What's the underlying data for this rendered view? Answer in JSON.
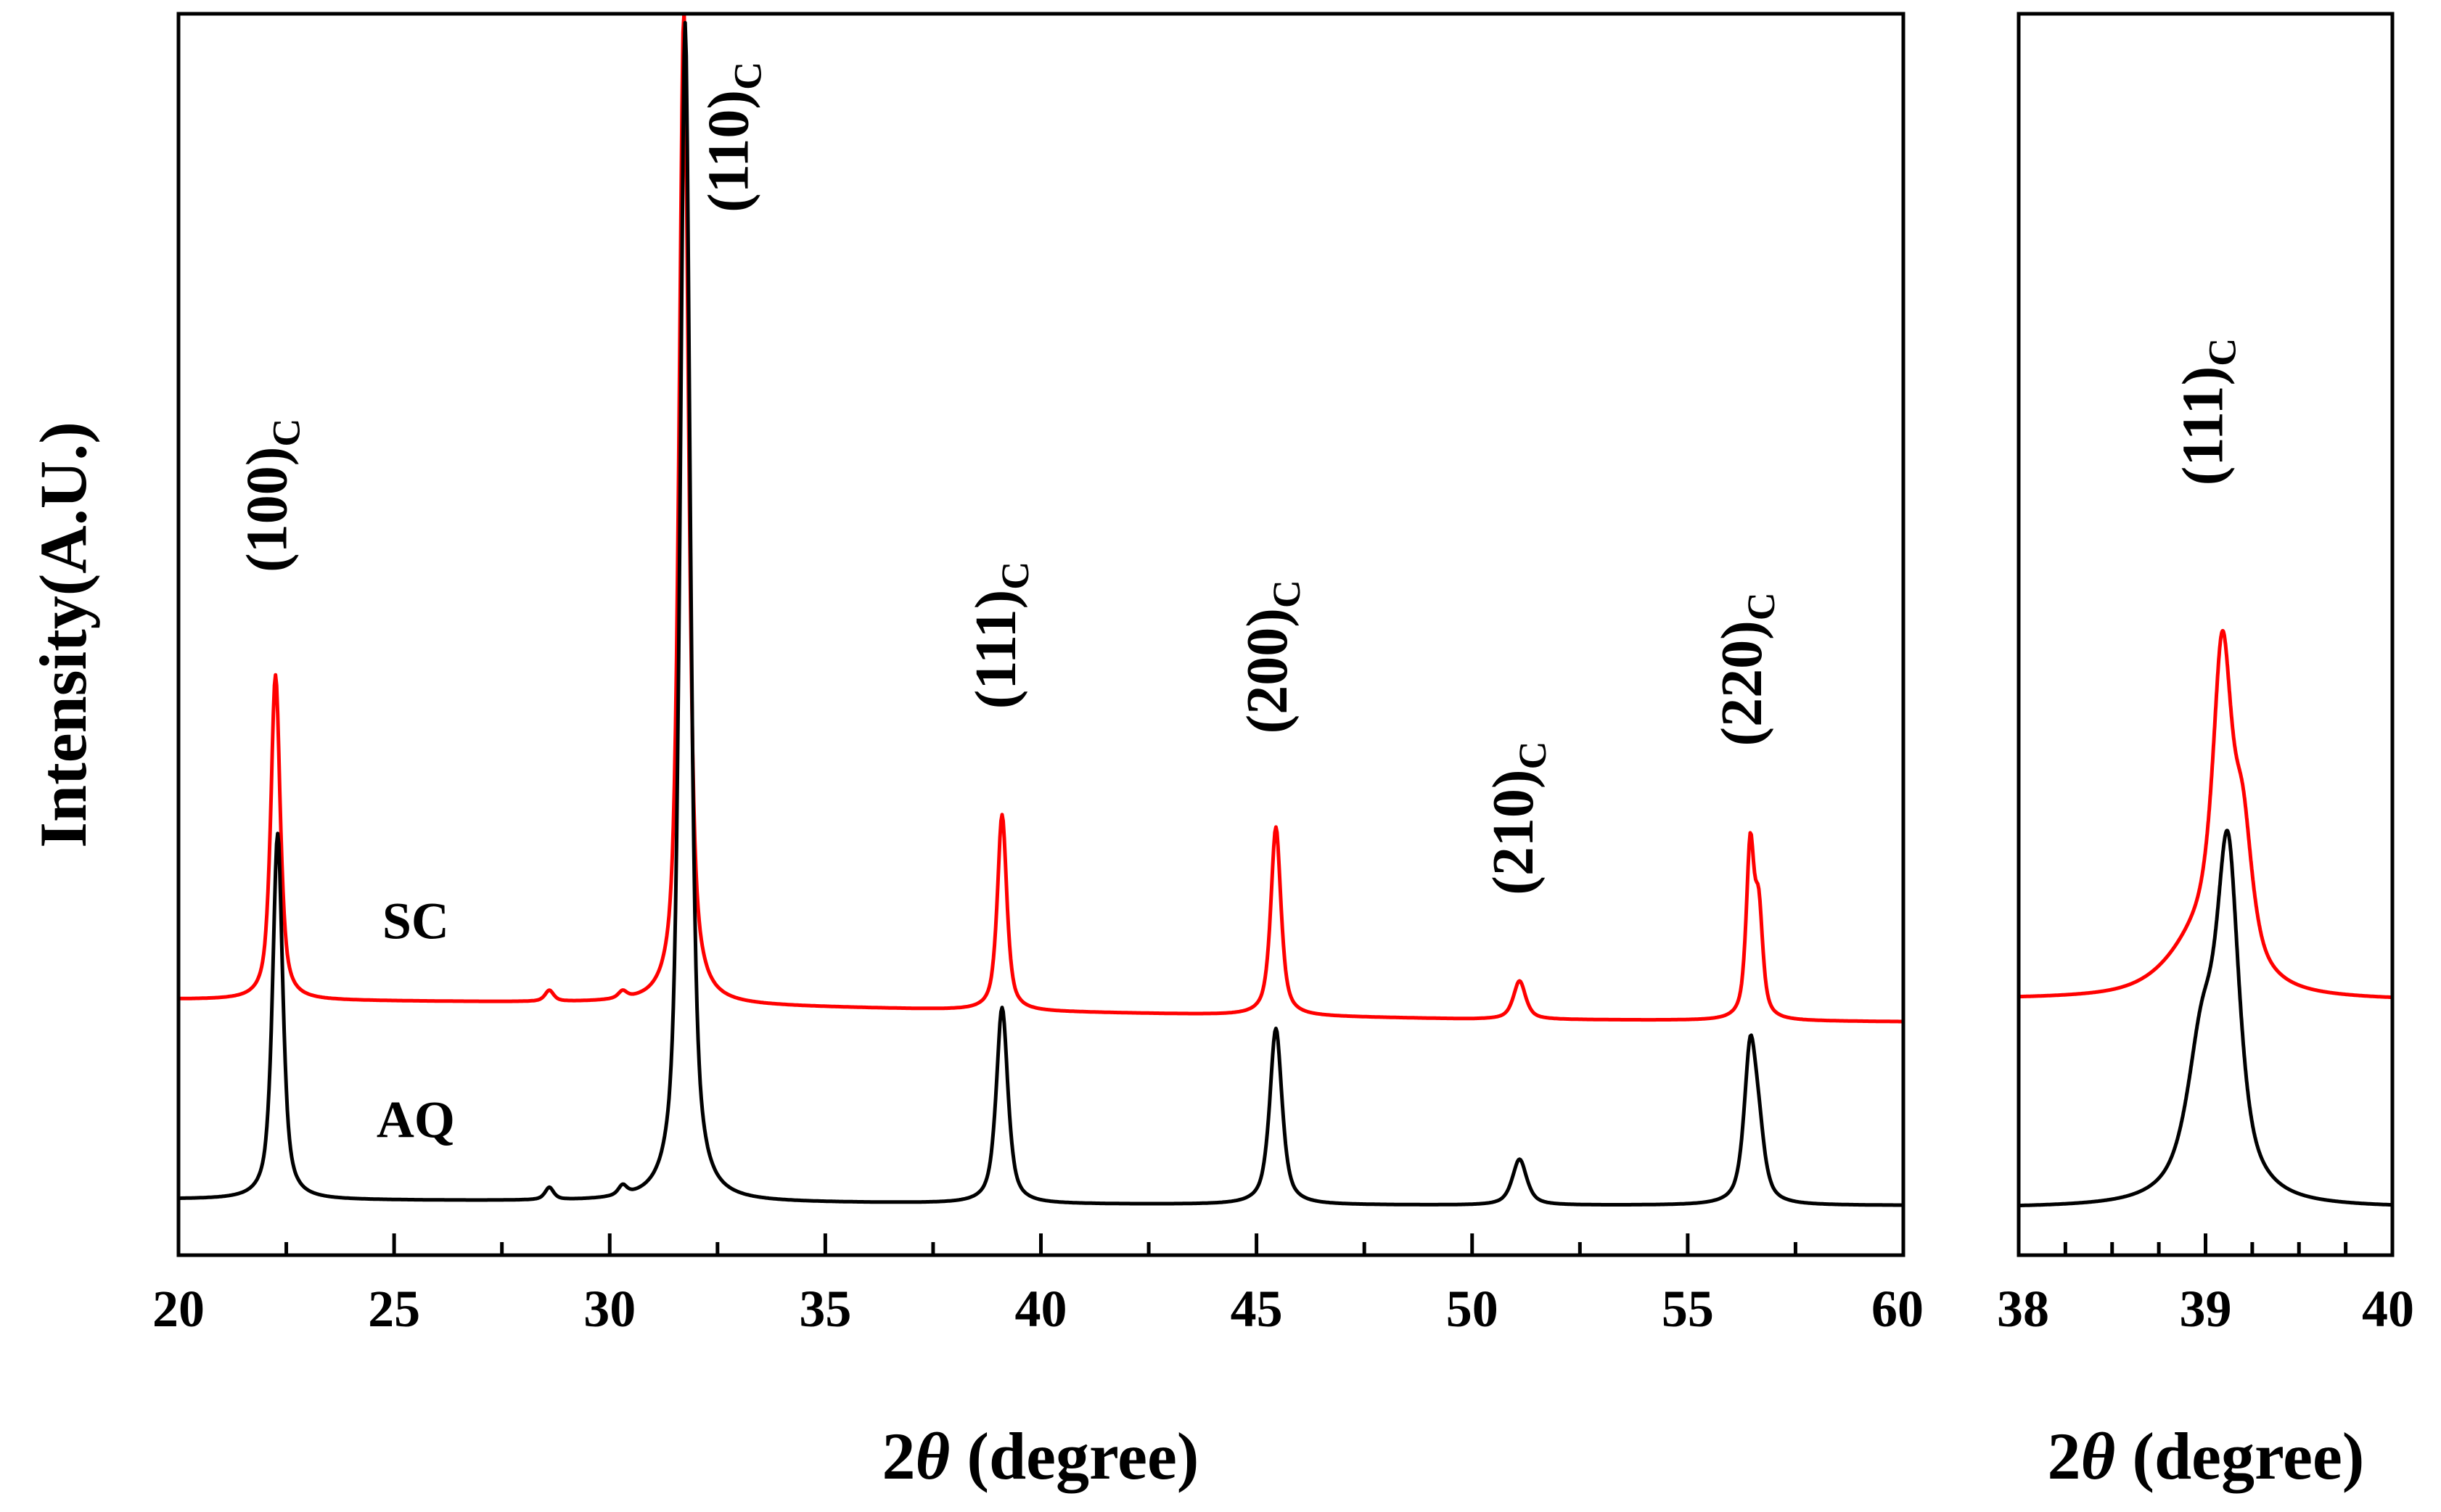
{
  "chart_data": [
    {
      "type": "line",
      "panel": "main",
      "title": "",
      "xlabel_prefix": "2",
      "xlabel_symbol": "θ",
      "xlabel_suffix": " (degree)",
      "ylabel": "Intensity(A.U.)",
      "xlim": [
        20,
        60
      ],
      "ylim": [
        0,
        100
      ],
      "x_ticks": [
        20,
        25,
        30,
        35,
        40,
        45,
        50,
        55,
        60
      ],
      "x_tick_labels": [
        "20",
        "25",
        "30",
        "35",
        "40",
        "45",
        "50",
        "55",
        "60"
      ],
      "y_ticks_shown": false,
      "series": [
        {
          "name": "SC",
          "color": "#ff0000",
          "baseline": [
            [
              20,
              20.6
            ],
            [
              30,
              20.3
            ],
            [
              40,
              19.6
            ],
            [
              50,
              19.0
            ],
            [
              60,
              18.8
            ]
          ],
          "peaks": [
            {
              "x": 22.25,
              "h": 26.2,
              "w": 0.13
            },
            {
              "x": 28.6,
              "h": 0.9,
              "w": 0.12
            },
            {
              "x": 30.3,
              "h": 0.6,
              "w": 0.12
            },
            {
              "x": 31.72,
              "h": 80.0,
              "w": 0.13
            },
            {
              "x": 39.1,
              "h": 15.8,
              "w": 0.13
            },
            {
              "x": 45.45,
              "h": 15.2,
              "w": 0.14
            },
            {
              "x": 51.1,
              "h": 3.1,
              "w": 0.17
            },
            {
              "x": 56.45,
              "h": 13.6,
              "w": 0.11
            },
            {
              "x": 56.65,
              "h": 8.0,
              "w": 0.11
            }
          ]
        },
        {
          "name": "AQ",
          "color": "#000000",
          "baseline": [
            [
              20,
              4.5
            ],
            [
              30,
              4.3
            ],
            [
              40,
              4.1
            ],
            [
              50,
              4.0
            ],
            [
              60,
              4.0
            ]
          ],
          "peaks": [
            {
              "x": 22.3,
              "h": 29.5,
              "w": 0.14
            },
            {
              "x": 28.6,
              "h": 1.0,
              "w": 0.12
            },
            {
              "x": 30.3,
              "h": 0.8,
              "w": 0.12
            },
            {
              "x": 31.75,
              "h": 95.0,
              "w": 0.14
            },
            {
              "x": 39.1,
              "h": 15.8,
              "w": 0.16
            },
            {
              "x": 45.45,
              "h": 14.2,
              "w": 0.17
            },
            {
              "x": 51.1,
              "h": 3.7,
              "w": 0.2
            },
            {
              "x": 56.45,
              "h": 12.0,
              "w": 0.17
            },
            {
              "x": 56.65,
              "h": 4.0,
              "w": 0.17
            }
          ]
        }
      ],
      "series_labels": [
        {
          "text": "SC",
          "x": 25.5,
          "y": 25.5
        },
        {
          "text": "AQ",
          "x": 25.5,
          "y": 9.5
        }
      ],
      "annotations": [
        {
          "main": "(100)",
          "sub": "C",
          "x": 22.5,
          "y": 55
        },
        {
          "main": "(110)",
          "sub": "C",
          "x": 33.2,
          "y": 84
        },
        {
          "main": "(111)",
          "sub": "C",
          "x": 39.4,
          "y": 44
        },
        {
          "main": "(200)",
          "sub": "C",
          "x": 45.7,
          "y": 42
        },
        {
          "main": "(210)",
          "sub": "C",
          "x": 51.4,
          "y": 29
        },
        {
          "main": "(220)",
          "sub": "C",
          "x": 56.7,
          "y": 41
        }
      ]
    },
    {
      "type": "line",
      "panel": "inset",
      "title": "",
      "xlabel_prefix": "2",
      "xlabel_symbol": "θ",
      "xlabel_suffix": " (degree)",
      "ylabel": "",
      "xlim": [
        38,
        40
      ],
      "ylim": [
        0,
        100
      ],
      "x_ticks": [
        38,
        38.25,
        38.5,
        38.75,
        39,
        39.25,
        39.5,
        39.75,
        40
      ],
      "x_tick_labels": [
        "38",
        "",
        "",
        "",
        "39",
        "",
        "",
        "",
        "40"
      ],
      "y_ticks_shown": false,
      "series": [
        {
          "name": "SC",
          "color": "#ff0000",
          "baseline": [
            [
              38,
              20.6
            ],
            [
              40,
              20.5
            ]
          ],
          "peaks": [
            {
              "x": 39.09,
              "h": 23.5,
              "w": 0.06
            },
            {
              "x": 39.2,
              "h": 10.0,
              "w": 0.06
            },
            {
              "x": 39.0,
              "h": 5.0,
              "w": 0.22
            }
          ]
        },
        {
          "name": "AQ",
          "color": "#000000",
          "baseline": [
            [
              38,
              3.8
            ],
            [
              40,
              3.8
            ]
          ],
          "peaks": [
            {
              "x": 39.12,
              "h": 25.0,
              "w": 0.07
            },
            {
              "x": 38.98,
              "h": 10.0,
              "w": 0.09
            },
            {
              "x": 39.05,
              "h": 3.0,
              "w": 0.2
            }
          ]
        }
      ],
      "series_labels": [],
      "annotations": [
        {
          "main": "(111)",
          "sub": "C",
          "x": 39.09,
          "y": 62
        }
      ]
    }
  ]
}
